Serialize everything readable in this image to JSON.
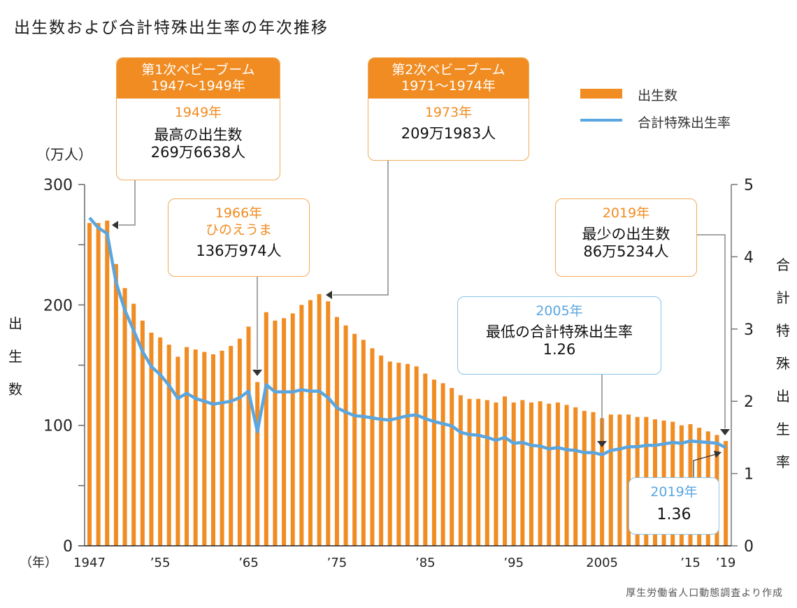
{
  "title": "出生数および合計特殊出生率の年次推移",
  "source": "厚生労働省人口動態調査より作成",
  "colors": {
    "births": "#f08c22",
    "tfr": "#5aa6e0",
    "axis": "#777777",
    "annotation_line": "#888888"
  },
  "chart_data": {
    "type": "bar+line",
    "title": "出生数および合計特殊出生率の年次推移",
    "x": [
      1947,
      1948,
      1949,
      1950,
      1951,
      1952,
      1953,
      1954,
      1955,
      1956,
      1957,
      1958,
      1959,
      1960,
      1961,
      1962,
      1963,
      1964,
      1965,
      1966,
      1967,
      1968,
      1969,
      1970,
      1971,
      1972,
      1973,
      1974,
      1975,
      1976,
      1977,
      1978,
      1979,
      1980,
      1981,
      1982,
      1983,
      1984,
      1985,
      1986,
      1987,
      1988,
      1989,
      1990,
      1991,
      1992,
      1993,
      1994,
      1995,
      1996,
      1997,
      1998,
      1999,
      2000,
      2001,
      2002,
      2003,
      2004,
      2005,
      2006,
      2007,
      2008,
      2009,
      2010,
      2011,
      2012,
      2013,
      2014,
      2015,
      2016,
      2017,
      2018,
      2019
    ],
    "xticks": [
      {
        "year": 1947,
        "label": "1947"
      },
      {
        "year": 1955,
        "label": "’55"
      },
      {
        "year": 1965,
        "label": "’65"
      },
      {
        "year": 1975,
        "label": "’75"
      },
      {
        "year": 1985,
        "label": "’85"
      },
      {
        "year": 1995,
        "label": "’95"
      },
      {
        "year": 2005,
        "label": "2005"
      },
      {
        "year": 2015,
        "label": "’15"
      },
      {
        "year": 2019,
        "label": "’19"
      }
    ],
    "xlabel": "（年）",
    "series": [
      {
        "name": "出生数",
        "type": "bar",
        "axis": "left",
        "unit": "万人",
        "values": [
          268,
          268,
          270,
          234,
          214,
          201,
          187,
          177,
          173,
          167,
          157,
          165,
          163,
          161,
          159,
          162,
          166,
          172,
          182,
          136,
          194,
          187,
          189,
          193,
          200,
          204,
          209,
          203,
          190,
          183,
          176,
          171,
          164,
          158,
          153,
          152,
          151,
          149,
          143,
          138,
          135,
          131,
          125,
          122,
          122,
          121,
          119,
          124,
          119,
          121,
          119,
          120,
          118,
          119,
          117,
          115,
          112,
          111,
          106,
          109,
          109,
          109,
          107,
          107,
          105,
          104,
          103,
          100,
          101,
          98,
          95,
          92,
          87
        ]
      },
      {
        "name": "合計特殊出生率",
        "type": "line",
        "axis": "right",
        "values": [
          4.54,
          4.4,
          4.32,
          3.65,
          3.26,
          2.98,
          2.69,
          2.48,
          2.37,
          2.22,
          2.04,
          2.11,
          2.04,
          2.0,
          1.96,
          1.98,
          2.0,
          2.05,
          2.14,
          1.58,
          2.23,
          2.13,
          2.13,
          2.13,
          2.16,
          2.14,
          2.14,
          2.05,
          1.91,
          1.85,
          1.8,
          1.79,
          1.77,
          1.75,
          1.74,
          1.77,
          1.8,
          1.81,
          1.76,
          1.72,
          1.69,
          1.66,
          1.57,
          1.54,
          1.53,
          1.5,
          1.46,
          1.5,
          1.42,
          1.43,
          1.39,
          1.38,
          1.34,
          1.36,
          1.33,
          1.32,
          1.29,
          1.29,
          1.26,
          1.32,
          1.34,
          1.37,
          1.37,
          1.39,
          1.39,
          1.41,
          1.43,
          1.42,
          1.45,
          1.44,
          1.43,
          1.42,
          1.36
        ]
      }
    ],
    "left_axis": {
      "label": "出生数",
      "unit": "（万人）",
      "range": [
        0,
        300
      ],
      "ticks": [
        "0",
        "100",
        "200",
        "300"
      ],
      "ticks_minor": [
        50,
        150,
        250
      ]
    },
    "right_axis": {
      "label": "合計特殊出生率",
      "range": [
        0,
        5
      ],
      "ticks": [
        "0",
        "1",
        "2",
        "3",
        "4",
        "5"
      ]
    },
    "legend": {
      "placement": "top-right",
      "items": [
        "出生数",
        "合計特殊出生率"
      ]
    },
    "grid": false
  },
  "annotations": {
    "boom1": {
      "header1": "第1次ベビーブーム",
      "header2": "1947～1949年",
      "year": "1949年",
      "line1": "最高の出生数",
      "line2": "269万6638人"
    },
    "boom2": {
      "header1": "第2次ベビーブーム",
      "header2": "1971～1974年",
      "year": "1973年",
      "line1": "209万1983人"
    },
    "hinoeuma": {
      "year": "1966年",
      "sub": "ひのえうま",
      "line1": "136万974人"
    },
    "min_births": {
      "year": "2019年",
      "line1": "最少の出生数",
      "line2": "86万5234人"
    },
    "min_tfr": {
      "year": "2005年",
      "line1": "最低の合計特殊出生率",
      "line2": "1.26"
    },
    "tfr_2019": {
      "year": "2019年",
      "line1": "1.36"
    }
  },
  "axis_labels": {
    "left_chars": [
      "出",
      "生",
      "数"
    ],
    "right_chars": [
      "合",
      "計",
      "特",
      "殊",
      "出",
      "生",
      "率"
    ],
    "left_unit": "（万人）",
    "x_unit": "（年）"
  }
}
